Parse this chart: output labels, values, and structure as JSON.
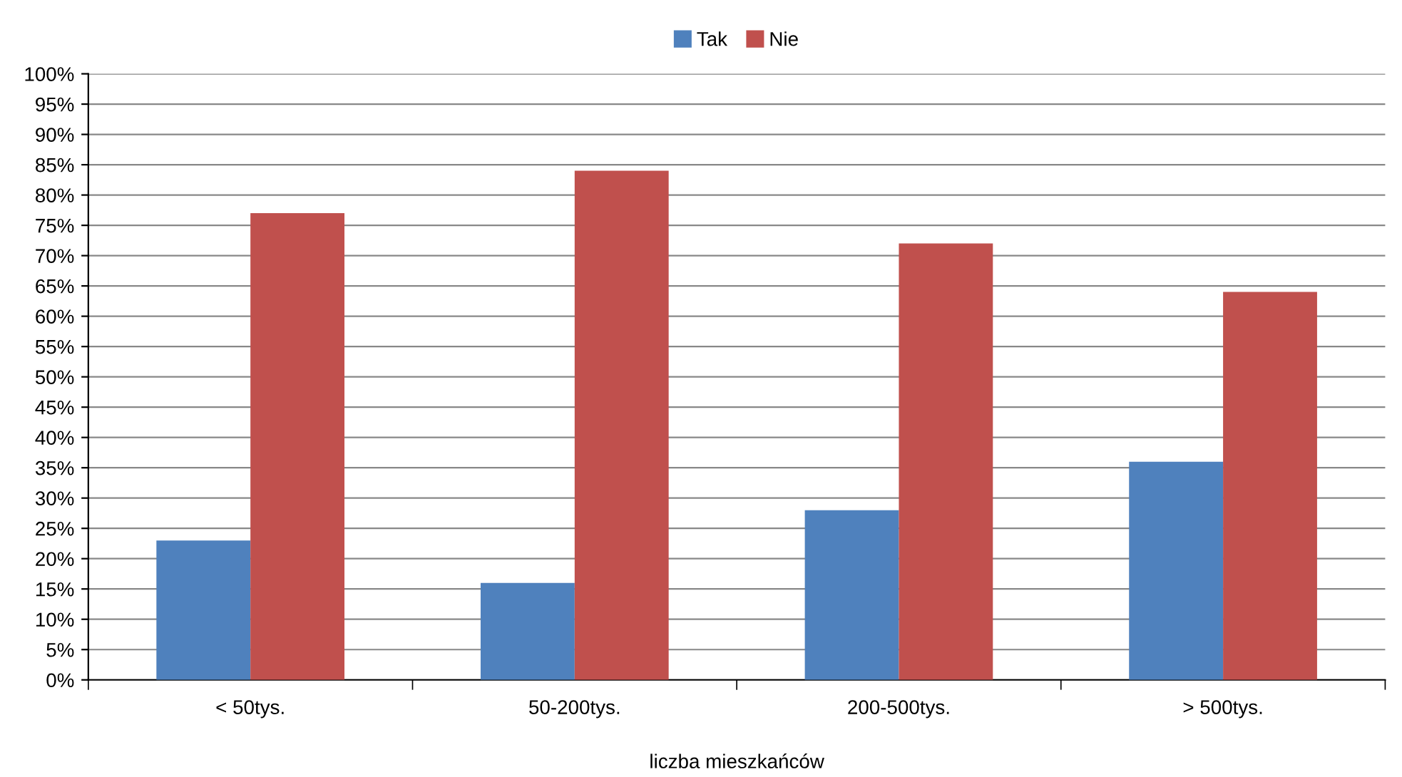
{
  "chart_data": {
    "type": "bar",
    "xlabel": "liczba mieszkańców",
    "categories": [
      "< 50tys.",
      "50-200tys.",
      "200-500tys.",
      "> 500tys."
    ],
    "series": [
      {
        "name": "Tak",
        "color": "#4f81bd",
        "values": [
          23,
          16,
          28,
          36
        ]
      },
      {
        "name": "Nie",
        "color": "#c0504d",
        "values": [
          77,
          84,
          72,
          64
        ]
      }
    ],
    "ylim": [
      0,
      100
    ],
    "yticks": [
      {
        "value": 0,
        "label": "0%"
      },
      {
        "value": 5,
        "label": "5%"
      },
      {
        "value": 10,
        "label": "10%"
      },
      {
        "value": 15,
        "label": "15%"
      },
      {
        "value": 20,
        "label": "20%"
      },
      {
        "value": 25,
        "label": "25%"
      },
      {
        "value": 30,
        "label": "30%"
      },
      {
        "value": 35,
        "label": "35%"
      },
      {
        "value": 40,
        "label": "40%"
      },
      {
        "value": 45,
        "label": "45%"
      },
      {
        "value": 50,
        "label": "50%"
      },
      {
        "value": 55,
        "label": "55%"
      },
      {
        "value": 60,
        "label": "60%"
      },
      {
        "value": 65,
        "label": "65%"
      },
      {
        "value": 70,
        "label": "70%"
      },
      {
        "value": 75,
        "label": "75%"
      },
      {
        "value": 80,
        "label": "80%"
      },
      {
        "value": 85,
        "label": "85%"
      },
      {
        "value": 90,
        "label": "90%"
      },
      {
        "value": 95,
        "label": "95%"
      },
      {
        "value": 100,
        "label": "100%"
      }
    ],
    "grid": "y",
    "legend": "top"
  }
}
